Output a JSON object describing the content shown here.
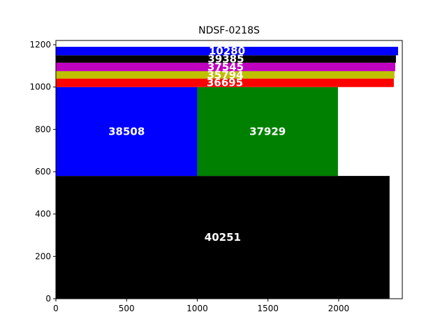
{
  "chart_data": {
    "type": "bar",
    "title": "NDSF-0218S",
    "xlabel": "",
    "ylabel": "",
    "xlim": [
      0,
      2450
    ],
    "ylim": [
      0,
      1220
    ],
    "grid": false,
    "x_ticks": [
      "0",
      "500",
      "1000",
      "1500",
      "2000"
    ],
    "x_tick_values": [
      0,
      500,
      1000,
      1500,
      2000
    ],
    "y_ticks": [
      "0",
      "200",
      "400",
      "600",
      "800",
      "1000",
      "1200"
    ],
    "y_tick_values": [
      0,
      200,
      400,
      600,
      800,
      1000,
      1200
    ],
    "rectangles": [
      {
        "label": "40251",
        "x0": 0,
        "x1": 2360,
        "y0": 0,
        "y1": 580,
        "color": "#000000"
      },
      {
        "label": "38508",
        "x0": 0,
        "x1": 1000,
        "y0": 580,
        "y1": 1000,
        "color": "#0000ff"
      },
      {
        "label": "37929",
        "x0": 1000,
        "x1": 1995,
        "y0": 580,
        "y1": 1000,
        "color": "#008000"
      },
      {
        "label": "36695",
        "x0": 0,
        "x1": 2390,
        "y0": 1000,
        "y1": 1040,
        "color": "#ff0000"
      },
      {
        "label": "35794",
        "x0": 0,
        "x1": 2395,
        "y0": 1040,
        "y1": 1075,
        "color": "#bfbf00"
      },
      {
        "label": "37545",
        "x0": 0,
        "x1": 2400,
        "y0": 1075,
        "y1": 1115,
        "color": "#bf00bf"
      },
      {
        "label": "39385",
        "x0": 0,
        "x1": 2405,
        "y0": 1115,
        "y1": 1150,
        "color": "#000000"
      },
      {
        "label": "10280",
        "x0": 0,
        "x1": 2420,
        "y0": 1150,
        "y1": 1190,
        "color": "#0000ff"
      }
    ]
  }
}
